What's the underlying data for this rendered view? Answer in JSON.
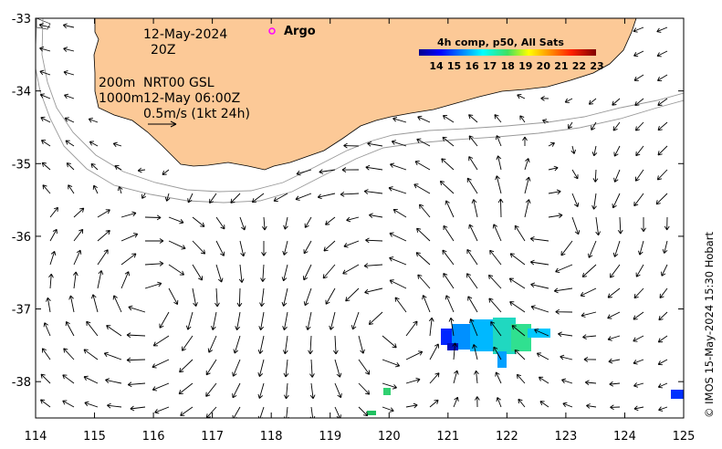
{
  "map": {
    "date": "12-May-2024",
    "hour": "20Z",
    "argo_label": "Argo",
    "iso_200": "200m",
    "iso_1000": "1000m",
    "product": "NRT00 GSL",
    "product_time": "12-May 06:00Z",
    "scale_label": "0.5m/s (1kt 24h)",
    "colorbar_title": "4h comp, p50, All Sats",
    "colorbar_ticks": [
      "14",
      "15",
      "16",
      "17",
      "18",
      "19",
      "20",
      "21",
      "22",
      "23"
    ],
    "credit": "© IMOS 15-May-2024 15:30 Hobart",
    "lon_ticks": [
      "114",
      "115",
      "116",
      "117",
      "118",
      "119",
      "120",
      "121",
      "122",
      "123",
      "124",
      "125"
    ],
    "lat_ticks": [
      "-33",
      "-34",
      "-35",
      "-36",
      "-37",
      "-38"
    ],
    "lon_range": [
      114,
      125
    ],
    "lat_range": [
      -38.5,
      -33
    ],
    "colors": {
      "land": "#fcc997",
      "argo": "#ff00ff",
      "isobath": "#999999"
    }
  }
}
